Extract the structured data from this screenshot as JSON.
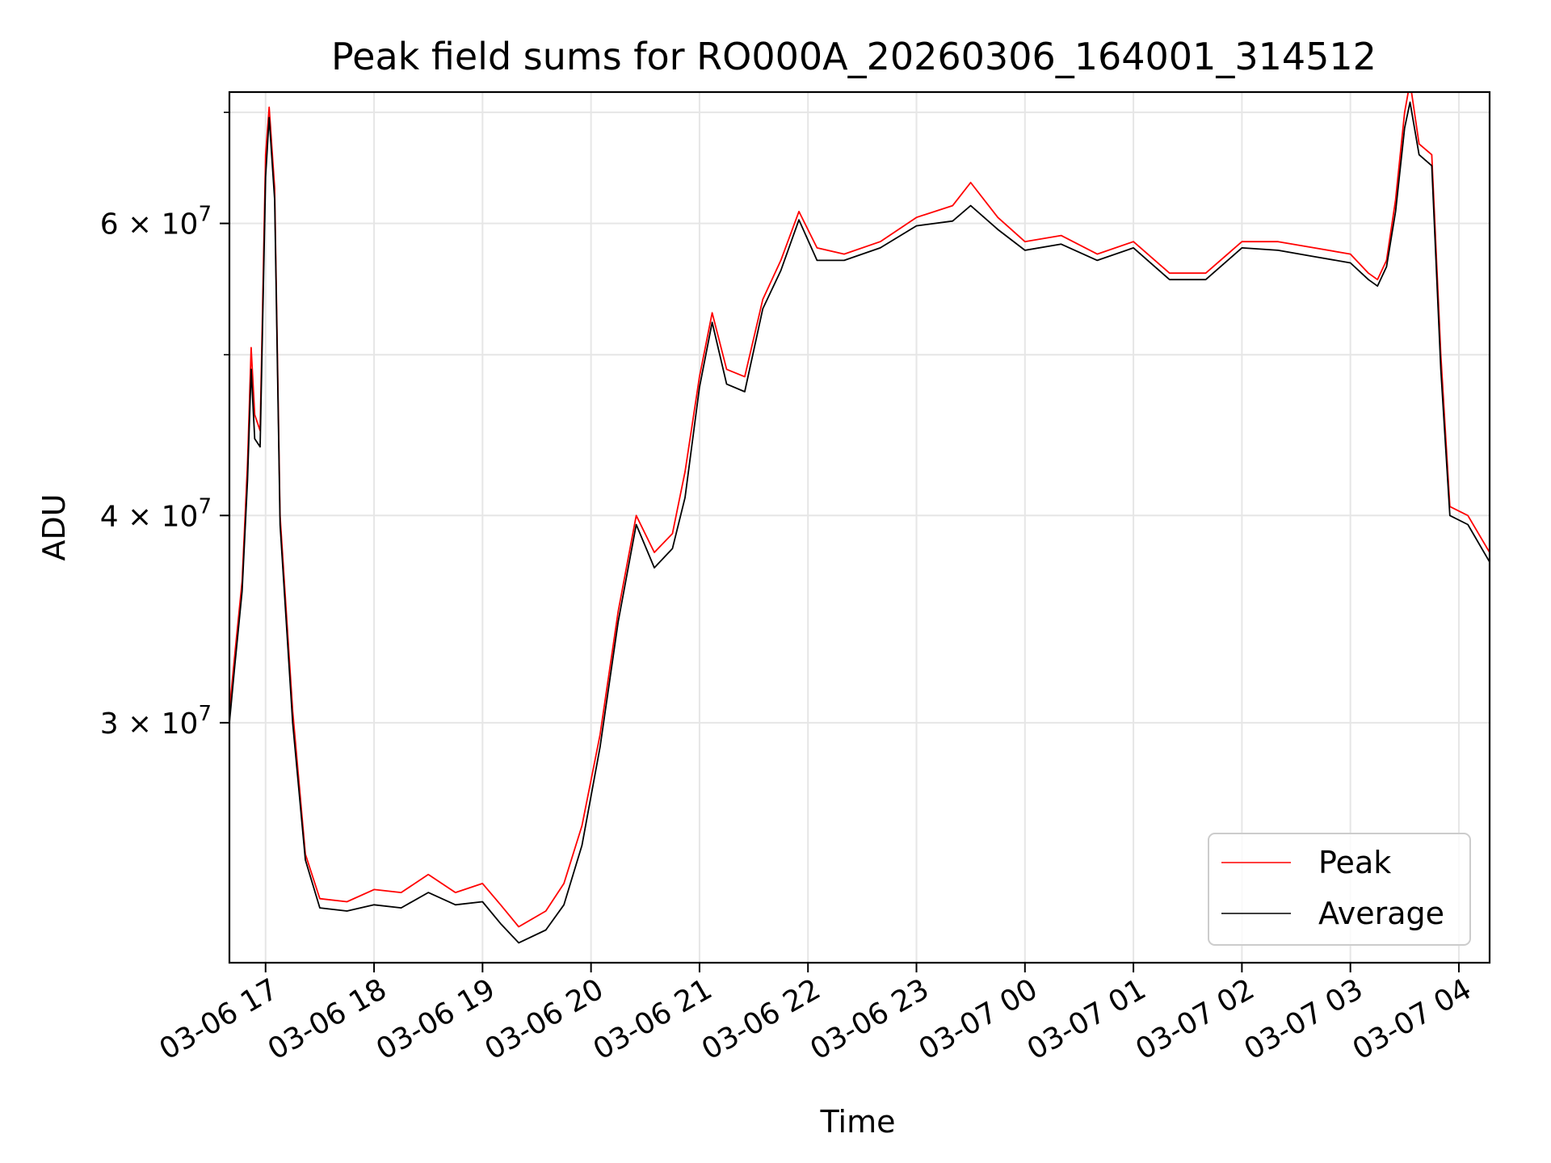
{
  "chart_data": {
    "type": "line",
    "title": "Peak field sums for RO000A_20260306_164001_314512",
    "xlabel": "Time",
    "ylabel": "ADU",
    "yscale": "log",
    "grid": true,
    "legend_position": "lower-right",
    "xlim": [
      "2026-03-06 16:40",
      "2026-03-07 04:17"
    ],
    "ylim": [
      21500000,
      72000000
    ],
    "x_ticks": [
      {
        "value": "2026-03-06 17:00",
        "label": "03-06 17"
      },
      {
        "value": "2026-03-06 18:00",
        "label": "03-06 18"
      },
      {
        "value": "2026-03-06 19:00",
        "label": "03-06 19"
      },
      {
        "value": "2026-03-06 20:00",
        "label": "03-06 20"
      },
      {
        "value": "2026-03-06 21:00",
        "label": "03-06 21"
      },
      {
        "value": "2026-03-06 22:00",
        "label": "03-06 22"
      },
      {
        "value": "2026-03-06 23:00",
        "label": "03-06 23"
      },
      {
        "value": "2026-03-07 00:00",
        "label": "03-07 00"
      },
      {
        "value": "2026-03-07 01:00",
        "label": "03-07 01"
      },
      {
        "value": "2026-03-07 02:00",
        "label": "03-07 02"
      },
      {
        "value": "2026-03-07 03:00",
        "label": "03-07 03"
      },
      {
        "value": "2026-03-07 04:00",
        "label": "03-07 04"
      }
    ],
    "y_major_ticks": [
      {
        "value": 30000000,
        "mantissa": "3",
        "base": "10",
        "exp": "7"
      },
      {
        "value": 40000000,
        "mantissa": "4",
        "base": "10",
        "exp": "7"
      },
      {
        "value": 60000000,
        "mantissa": "6",
        "base": "10",
        "exp": "7"
      }
    ],
    "y_minor_ticks": [
      50000000,
      70000000
    ],
    "series": [
      {
        "name": "Peak",
        "color": "#ff0000",
        "points": [
          [
            "2026-03-06 16:40",
            30500000
          ],
          [
            "2026-03-06 16:43",
            33000000
          ],
          [
            "2026-03-06 16:47",
            36500000
          ],
          [
            "2026-03-06 16:50",
            43000000
          ],
          [
            "2026-03-06 16:52",
            50500000
          ],
          [
            "2026-03-06 16:54",
            46000000
          ],
          [
            "2026-03-06 16:57",
            45000000
          ],
          [
            "2026-03-06 17:00",
            66000000
          ],
          [
            "2026-03-06 17:02",
            70500000
          ],
          [
            "2026-03-06 17:05",
            63000000
          ],
          [
            "2026-03-06 17:08",
            40000000
          ],
          [
            "2026-03-06 17:15",
            30500000
          ],
          [
            "2026-03-06 17:22",
            25000000
          ],
          [
            "2026-03-06 17:30",
            23500000
          ],
          [
            "2026-03-06 17:45",
            23400000
          ],
          [
            "2026-03-06 18:00",
            23800000
          ],
          [
            "2026-03-06 18:15",
            23700000
          ],
          [
            "2026-03-06 18:30",
            24300000
          ],
          [
            "2026-03-06 18:45",
            23700000
          ],
          [
            "2026-03-06 19:00",
            24000000
          ],
          [
            "2026-03-06 19:10",
            23300000
          ],
          [
            "2026-03-06 19:20",
            22600000
          ],
          [
            "2026-03-06 19:35",
            23100000
          ],
          [
            "2026-03-06 19:45",
            24000000
          ],
          [
            "2026-03-06 19:55",
            26000000
          ],
          [
            "2026-03-06 20:05",
            29500000
          ],
          [
            "2026-03-06 20:15",
            35000000
          ],
          [
            "2026-03-06 20:25",
            40000000
          ],
          [
            "2026-03-06 20:35",
            38000000
          ],
          [
            "2026-03-06 20:45",
            39000000
          ],
          [
            "2026-03-06 20:52",
            42500000
          ],
          [
            "2026-03-06 21:00",
            48500000
          ],
          [
            "2026-03-06 21:07",
            53000000
          ],
          [
            "2026-03-06 21:15",
            49000000
          ],
          [
            "2026-03-06 21:25",
            48500000
          ],
          [
            "2026-03-06 21:35",
            54000000
          ],
          [
            "2026-03-06 21:45",
            57000000
          ],
          [
            "2026-03-06 21:55",
            61000000
          ],
          [
            "2026-03-06 22:05",
            58000000
          ],
          [
            "2026-03-06 22:20",
            57500000
          ],
          [
            "2026-03-06 22:40",
            58500000
          ],
          [
            "2026-03-06 23:00",
            60500000
          ],
          [
            "2026-03-06 23:20",
            61500000
          ],
          [
            "2026-03-06 23:30",
            63500000
          ],
          [
            "2026-03-06 23:45",
            60500000
          ],
          [
            "2026-03-07 00:00",
            58500000
          ],
          [
            "2026-03-07 00:20",
            59000000
          ],
          [
            "2026-03-07 00:40",
            57500000
          ],
          [
            "2026-03-07 01:00",
            58500000
          ],
          [
            "2026-03-07 01:20",
            56000000
          ],
          [
            "2026-03-07 01:40",
            56000000
          ],
          [
            "2026-03-07 02:00",
            58500000
          ],
          [
            "2026-03-07 02:20",
            58500000
          ],
          [
            "2026-03-07 02:40",
            58000000
          ],
          [
            "2026-03-07 03:00",
            57500000
          ],
          [
            "2026-03-07 03:10",
            56000000
          ],
          [
            "2026-03-07 03:15",
            55500000
          ],
          [
            "2026-03-07 03:20",
            57000000
          ],
          [
            "2026-03-07 03:25",
            62000000
          ],
          [
            "2026-03-07 03:30",
            70000000
          ],
          [
            "2026-03-07 03:33",
            73000000
          ],
          [
            "2026-03-07 03:38",
            67000000
          ],
          [
            "2026-03-07 03:45",
            66000000
          ],
          [
            "2026-03-07 03:50",
            50000000
          ],
          [
            "2026-03-07 03:55",
            40500000
          ],
          [
            "2026-03-07 04:05",
            40000000
          ],
          [
            "2026-03-07 04:17",
            38000000
          ]
        ]
      },
      {
        "name": "Average",
        "color": "#000000",
        "points": [
          [
            "2026-03-06 16:40",
            30000000
          ],
          [
            "2026-03-06 16:43",
            32500000
          ],
          [
            "2026-03-06 16:47",
            36000000
          ],
          [
            "2026-03-06 16:50",
            42000000
          ],
          [
            "2026-03-06 16:52",
            49000000
          ],
          [
            "2026-03-06 16:54",
            44500000
          ],
          [
            "2026-03-06 16:57",
            44000000
          ],
          [
            "2026-03-06 17:00",
            64000000
          ],
          [
            "2026-03-06 17:02",
            69500000
          ],
          [
            "2026-03-06 17:05",
            62000000
          ],
          [
            "2026-03-06 17:08",
            39500000
          ],
          [
            "2026-03-06 17:15",
            30000000
          ],
          [
            "2026-03-06 17:22",
            24800000
          ],
          [
            "2026-03-06 17:30",
            23200000
          ],
          [
            "2026-03-06 17:45",
            23100000
          ],
          [
            "2026-03-06 18:00",
            23300000
          ],
          [
            "2026-03-06 18:15",
            23200000
          ],
          [
            "2026-03-06 18:30",
            23700000
          ],
          [
            "2026-03-06 18:45",
            23300000
          ],
          [
            "2026-03-06 19:00",
            23400000
          ],
          [
            "2026-03-06 19:10",
            22700000
          ],
          [
            "2026-03-06 19:20",
            22100000
          ],
          [
            "2026-03-06 19:35",
            22500000
          ],
          [
            "2026-03-06 19:45",
            23300000
          ],
          [
            "2026-03-06 19:55",
            25300000
          ],
          [
            "2026-03-06 20:05",
            29000000
          ],
          [
            "2026-03-06 20:15",
            34500000
          ],
          [
            "2026-03-06 20:25",
            39500000
          ],
          [
            "2026-03-06 20:35",
            37200000
          ],
          [
            "2026-03-06 20:45",
            38200000
          ],
          [
            "2026-03-06 20:52",
            41000000
          ],
          [
            "2026-03-06 21:00",
            47800000
          ],
          [
            "2026-03-06 21:07",
            52300000
          ],
          [
            "2026-03-06 21:15",
            48000000
          ],
          [
            "2026-03-06 21:25",
            47500000
          ],
          [
            "2026-03-06 21:35",
            53300000
          ],
          [
            "2026-03-06 21:45",
            56200000
          ],
          [
            "2026-03-06 21:55",
            60300000
          ],
          [
            "2026-03-06 22:05",
            57000000
          ],
          [
            "2026-03-06 22:20",
            57000000
          ],
          [
            "2026-03-06 22:40",
            58000000
          ],
          [
            "2026-03-06 23:00",
            59800000
          ],
          [
            "2026-03-06 23:20",
            60200000
          ],
          [
            "2026-03-06 23:30",
            61500000
          ],
          [
            "2026-03-06 23:45",
            59500000
          ],
          [
            "2026-03-07 00:00",
            57800000
          ],
          [
            "2026-03-07 00:20",
            58300000
          ],
          [
            "2026-03-07 00:40",
            57000000
          ],
          [
            "2026-03-07 01:00",
            58000000
          ],
          [
            "2026-03-07 01:20",
            55500000
          ],
          [
            "2026-03-07 01:40",
            55500000
          ],
          [
            "2026-03-07 02:00",
            58000000
          ],
          [
            "2026-03-07 02:20",
            57800000
          ],
          [
            "2026-03-07 02:40",
            57300000
          ],
          [
            "2026-03-07 03:00",
            56800000
          ],
          [
            "2026-03-07 03:10",
            55500000
          ],
          [
            "2026-03-07 03:15",
            55000000
          ],
          [
            "2026-03-07 03:20",
            56500000
          ],
          [
            "2026-03-07 03:25",
            61000000
          ],
          [
            "2026-03-07 03:30",
            68500000
          ],
          [
            "2026-03-07 03:33",
            71000000
          ],
          [
            "2026-03-07 03:38",
            66000000
          ],
          [
            "2026-03-07 03:45",
            65000000
          ],
          [
            "2026-03-07 03:50",
            49000000
          ],
          [
            "2026-03-07 03:55",
            40000000
          ],
          [
            "2026-03-07 04:05",
            39500000
          ],
          [
            "2026-03-07 04:17",
            37500000
          ]
        ]
      }
    ]
  }
}
